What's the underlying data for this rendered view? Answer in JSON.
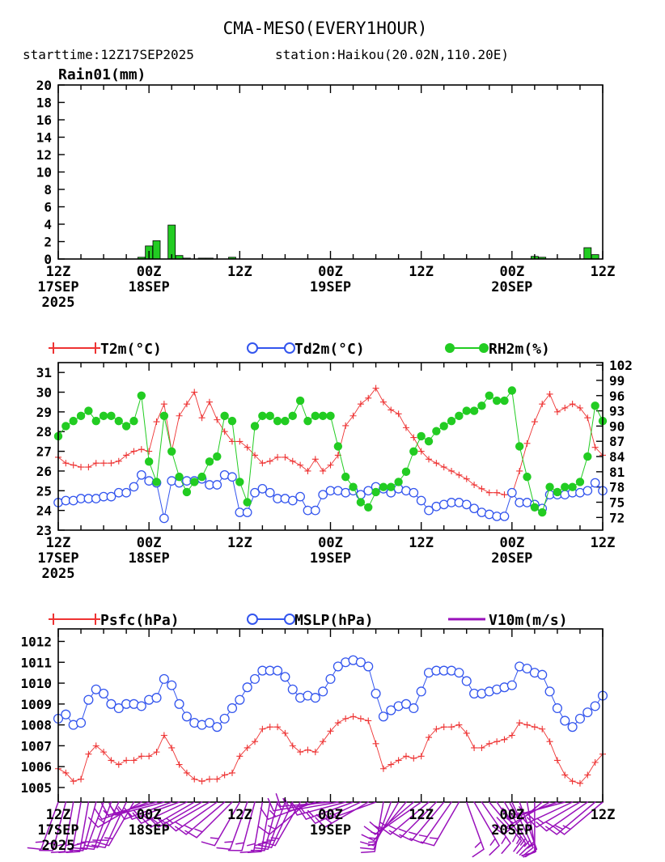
{
  "header": {
    "title": "CMA-MESO(EVERY1HOUR)",
    "starttime": "starttime:12Z17SEP2025",
    "station": "station:Haikou(20.02N,110.20E)"
  },
  "colors": {
    "temp": "#ee3333",
    "dew": "#3355ee",
    "rh": "#22cc22",
    "rain": "#22cc22",
    "psfc": "#ee3333",
    "mslp": "#3355ee",
    "wind": "#9911bb"
  },
  "time_axis": {
    "labels": [
      {
        "h": 0,
        "line1": "12Z",
        "line2": "17SEP",
        "line3": "2025"
      },
      {
        "h": 12,
        "line1": "00Z",
        "line2": "18SEP",
        "line3": ""
      },
      {
        "h": 24,
        "line1": "12Z",
        "line2": "",
        "line3": ""
      },
      {
        "h": 36,
        "line1": "00Z",
        "line2": "19SEP",
        "line3": ""
      },
      {
        "h": 48,
        "line1": "12Z",
        "line2": "",
        "line3": ""
      },
      {
        "h": 60,
        "line1": "00Z",
        "line2": "20SEP",
        "line3": ""
      },
      {
        "h": 72,
        "line1": "12Z",
        "line2": "",
        "line3": ""
      }
    ]
  },
  "chart_data": [
    {
      "type": "bar",
      "title": "Rain01(mm)",
      "ylim": [
        0,
        20
      ],
      "yticks": [
        "0",
        "2",
        "4",
        "6",
        "8",
        "10",
        "12",
        "14",
        "16",
        "18",
        "20"
      ],
      "xlim": [
        0,
        72
      ],
      "series": [
        {
          "name": "Rain01(mm)",
          "x": [
            11,
            12,
            13,
            15,
            16,
            17,
            19,
            20,
            23,
            63,
            64,
            70,
            71
          ],
          "values": [
            0.2,
            1.5,
            2.1,
            3.9,
            0.4,
            0.1,
            0.1,
            0.1,
            0.2,
            0.3,
            0.2,
            1.3,
            0.5
          ]
        }
      ]
    },
    {
      "type": "line",
      "xlim": [
        0,
        72
      ],
      "ylim": [
        23,
        31.5
      ],
      "yticks": [
        "23",
        "24",
        "25",
        "26",
        "27",
        "28",
        "29",
        "30",
        "31"
      ],
      "y2lim": [
        69.5,
        102.5
      ],
      "y2ticks": [
        "72",
        "75",
        "78",
        "81",
        "84",
        "87",
        "90",
        "93",
        "96",
        "99",
        "102"
      ],
      "series": [
        {
          "name": "T2m(°C)",
          "values": [
            26.7,
            26.4,
            26.3,
            26.2,
            26.2,
            26.4,
            26.4,
            26.4,
            26.5,
            26.8,
            27.0,
            27.1,
            27.0,
            28.5,
            29.4,
            27.0,
            28.8,
            29.4,
            30.0,
            28.7,
            29.5,
            28.6,
            28.0,
            27.5,
            27.5,
            27.2,
            26.8,
            26.4,
            26.5,
            26.7,
            26.7,
            26.5,
            26.3,
            26.0,
            26.6,
            26.0,
            26.3,
            26.8,
            28.3,
            28.8,
            29.4,
            29.7,
            30.2,
            29.5,
            29.1,
            28.9,
            28.2,
            27.7,
            27.0,
            26.6,
            26.4,
            26.2,
            26.0,
            25.8,
            25.6,
            25.3,
            25.1,
            24.9,
            24.9,
            24.8,
            24.8,
            26.0,
            27.4,
            28.5,
            29.4,
            29.9,
            29.0,
            29.2,
            29.4,
            29.2,
            28.7,
            27.2,
            26.8
          ]
        },
        {
          "name": "Td2m(°C)",
          "values": [
            24.4,
            24.5,
            24.5,
            24.6,
            24.6,
            24.6,
            24.7,
            24.7,
            24.9,
            24.9,
            25.2,
            25.8,
            25.5,
            25.4,
            23.6,
            25.5,
            25.4,
            25.5,
            25.5,
            25.6,
            25.3,
            25.3,
            25.8,
            25.7,
            23.9,
            23.9,
            24.9,
            25.1,
            24.9,
            24.6,
            24.6,
            24.5,
            24.7,
            24.0,
            24.0,
            24.8,
            25.0,
            25.0,
            24.9,
            25.0,
            24.8,
            25.0,
            25.2,
            25.1,
            24.9,
            25.1,
            25.0,
            24.9,
            24.5,
            24.0,
            24.2,
            24.3,
            24.4,
            24.4,
            24.3,
            24.1,
            23.9,
            23.8,
            23.7,
            23.7,
            24.9,
            24.4,
            24.4,
            24.3,
            24.1,
            24.8,
            24.8,
            24.8,
            24.9,
            24.9,
            25.0,
            25.4,
            25.0
          ]
        },
        {
          "name": "RH2m(%)",
          "values": [
            88,
            90,
            91,
            92,
            93,
            91,
            92,
            92,
            91,
            90,
            91,
            96,
            83,
            79,
            92,
            85,
            80,
            77,
            79,
            80,
            83,
            84,
            92,
            91,
            79,
            75,
            90,
            92,
            92,
            91,
            91,
            92,
            95,
            91,
            92,
            92,
            92,
            86,
            80,
            78,
            75,
            74,
            77,
            78,
            78,
            79,
            81,
            85,
            88,
            87,
            89,
            90,
            91,
            92,
            93,
            93,
            94,
            96,
            95,
            95,
            97,
            86,
            80,
            74,
            73,
            78,
            77,
            78,
            78,
            79,
            84,
            94,
            91
          ]
        }
      ]
    },
    {
      "type": "line",
      "xlim": [
        0,
        72
      ],
      "ylim": [
        1004.3,
        1012.6
      ],
      "yticks": [
        "1005",
        "1006",
        "1007",
        "1008",
        "1009",
        "1010",
        "1011",
        "1012"
      ],
      "series": [
        {
          "name": "Psfc(hPa)",
          "values": [
            1005.9,
            1005.7,
            1005.3,
            1005.4,
            1006.6,
            1007.0,
            1006.7,
            1006.3,
            1006.1,
            1006.3,
            1006.3,
            1006.5,
            1006.5,
            1006.7,
            1007.5,
            1006.9,
            1006.1,
            1005.7,
            1005.4,
            1005.3,
            1005.4,
            1005.4,
            1005.6,
            1005.7,
            1006.5,
            1006.9,
            1007.2,
            1007.8,
            1007.9,
            1007.9,
            1007.6,
            1007.0,
            1006.7,
            1006.8,
            1006.7,
            1007.2,
            1007.7,
            1008.1,
            1008.3,
            1008.4,
            1008.3,
            1008.2,
            1007.1,
            1005.9,
            1006.1,
            1006.3,
            1006.5,
            1006.4,
            1006.5,
            1007.4,
            1007.8,
            1007.9,
            1007.9,
            1008.0,
            1007.6,
            1006.9,
            1006.9,
            1007.1,
            1007.2,
            1007.3,
            1007.5,
            1008.1,
            1008.0,
            1007.9,
            1007.8,
            1007.2,
            1006.3,
            1005.6,
            1005.3,
            1005.2,
            1005.6,
            1006.2,
            1006.6
          ]
        },
        {
          "name": "MSLP(hPa)",
          "values": [
            1008.3,
            1008.5,
            1008.0,
            1008.1,
            1009.2,
            1009.7,
            1009.5,
            1009.0,
            1008.8,
            1009.0,
            1009.0,
            1008.9,
            1009.2,
            1009.3,
            1010.2,
            1009.9,
            1009.0,
            1008.4,
            1008.1,
            1008.0,
            1008.1,
            1007.9,
            1008.3,
            1008.8,
            1009.2,
            1009.8,
            1010.2,
            1010.6,
            1010.6,
            1010.6,
            1010.3,
            1009.7,
            1009.3,
            1009.4,
            1009.3,
            1009.6,
            1010.2,
            1010.8,
            1011.0,
            1011.1,
            1011.0,
            1010.8,
            1009.5,
            1008.4,
            1008.7,
            1008.9,
            1009.0,
            1008.8,
            1009.6,
            1010.5,
            1010.6,
            1010.6,
            1010.6,
            1010.5,
            1010.1,
            1009.5,
            1009.5,
            1009.6,
            1009.7,
            1009.8,
            1009.9,
            1010.8,
            1010.7,
            1010.5,
            1010.4,
            1009.6,
            1008.8,
            1008.2,
            1007.9,
            1008.3,
            1008.6,
            1008.9,
            1009.4
          ]
        }
      ],
      "wind_barbs": {
        "name": "V10m(m/s)",
        "angles_deg": [
          -110,
          -105,
          -100,
          -100,
          -100,
          -105,
          -110,
          -110,
          -115,
          -115,
          -120,
          -150,
          -160,
          -165,
          -165,
          -160,
          -160,
          -155,
          -150,
          -150,
          -150,
          -145,
          -140,
          -135,
          -120,
          -110,
          -105,
          -100,
          -100,
          -105,
          -110,
          -115,
          -120,
          -140,
          -160,
          -170,
          -175,
          -170,
          -165,
          -160,
          -155,
          -150,
          -160,
          -100,
          -110,
          -120,
          -130,
          -140,
          -145,
          -140,
          -135,
          -130,
          -125,
          -120,
          -70,
          -60,
          -55,
          -50,
          -55,
          -60,
          -65,
          -70,
          -80,
          -90,
          -140,
          -150,
          -160,
          -165,
          -155,
          -150,
          -145,
          -140,
          -140
        ]
      }
    }
  ],
  "legends": {
    "t2m": "T2m(°C)",
    "td2m": "Td2m(°C)",
    "rh2m": "RH2m(%)",
    "psfc": "Psfc(hPa)",
    "mslp": "MSLP(hPa)",
    "v10m": "V10m(m/s)"
  }
}
